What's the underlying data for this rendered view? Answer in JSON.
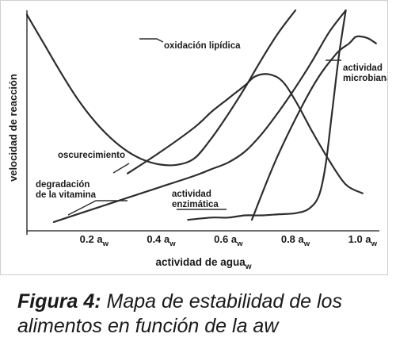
{
  "caption": {
    "label": "Figura 4:",
    "text": " Mapa de estabilidad de los alimentos en función de la aw"
  },
  "chart_data": {
    "type": "line",
    "title": "",
    "xlabel": "actividad de agua",
    "xlabel_sub": "w",
    "ylabel": "velocidad de reacción",
    "xlim": [
      0,
      1.05
    ],
    "ylim": [
      0,
      100
    ],
    "x_ticks": [
      {
        "value": 0.2,
        "text": "0.2 a",
        "sub": "w"
      },
      {
        "value": 0.4,
        "text": "0.4 a",
        "sub": "w"
      },
      {
        "value": 0.6,
        "text": "0.6 a",
        "sub": "w"
      },
      {
        "value": 0.8,
        "text": "0.8 a",
        "sub": "w"
      },
      {
        "value": 1.0,
        "text": "1.0 a",
        "sub": "w"
      }
    ],
    "y_ticks_shown": false,
    "series": [
      {
        "name": "oxidación lipídica",
        "x": [
          0.0,
          0.05,
          0.1,
          0.15,
          0.2,
          0.25,
          0.3,
          0.35,
          0.4,
          0.45,
          0.5,
          0.55,
          0.6,
          0.65,
          0.7,
          0.75,
          0.8
        ],
        "y": [
          98,
          85,
          72,
          60,
          50,
          42,
          36,
          32,
          30,
          30,
          33,
          42,
          53,
          65,
          78,
          90,
          100
        ]
      },
      {
        "name": "oscurecimiento",
        "x": [
          0.3,
          0.4,
          0.5,
          0.55,
          0.6,
          0.65,
          0.68,
          0.72,
          0.76,
          0.8,
          0.85,
          0.9,
          0.95,
          1.0
        ],
        "y": [
          26,
          36,
          47,
          54,
          60,
          66,
          70,
          71,
          68,
          59,
          45,
          32,
          21,
          17
        ]
      },
      {
        "name": "degradación de la vitamina",
        "x": [
          0.08,
          0.2,
          0.3,
          0.4,
          0.5,
          0.55,
          0.6,
          0.65,
          0.7,
          0.75,
          0.8,
          0.85,
          0.9,
          0.95
        ],
        "y": [
          4,
          10,
          15,
          20,
          25,
          28,
          31,
          36,
          44,
          54,
          65,
          77,
          90,
          100
        ]
      },
      {
        "name": "actividad enzimática",
        "x": [
          0.48,
          0.55,
          0.6,
          0.65,
          0.7,
          0.75,
          0.8,
          0.84,
          0.87,
          0.89,
          0.91,
          0.93,
          0.95
        ],
        "y": [
          5,
          6,
          6,
          7,
          7,
          7.5,
          8,
          10,
          16,
          30,
          55,
          80,
          100
        ]
      },
      {
        "name": "actividad microbiana",
        "x": [
          0.67,
          0.75,
          0.85,
          0.92,
          0.96,
          0.98,
          1.0,
          1.02,
          1.04
        ],
        "y": [
          5,
          35,
          65,
          80,
          85,
          88,
          88,
          87,
          85
        ]
      }
    ],
    "annotations": [
      {
        "series": "oxidación lipídica",
        "lines": [
          "oxidación lipídica"
        ]
      },
      {
        "series": "oscurecimiento",
        "lines": [
          "oscurecimiento"
        ]
      },
      {
        "series": "degradación de la vitamina",
        "lines": [
          "degradación",
          "de la vitamina"
        ]
      },
      {
        "series": "actividad enzimática",
        "lines": [
          "actividad",
          "enzimática"
        ]
      },
      {
        "series": "actividad microbiana",
        "lines": [
          "actividad",
          "microbiana"
        ]
      }
    ],
    "grid": false,
    "legend": "none (curves labeled directly)",
    "colors": {
      "line": "#2d2d2d",
      "text": "#1a1a1a",
      "axis": "#1a1a1a"
    }
  }
}
